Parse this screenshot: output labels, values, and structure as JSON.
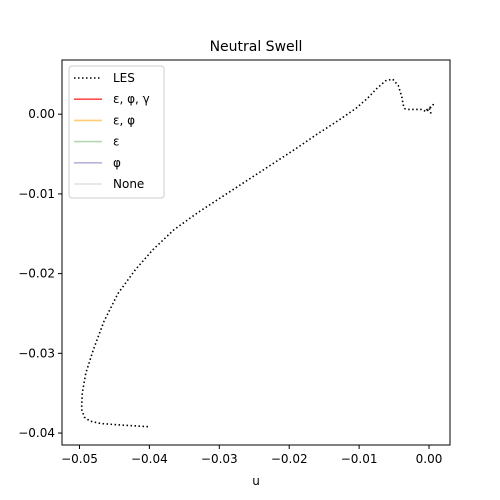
{
  "chart_data": {
    "type": "line",
    "title": "Neutral Swell",
    "xlabel": "u",
    "ylabel": "",
    "xlim": [
      -0.0525,
      0.003
    ],
    "ylim": [
      -0.0415,
      0.0068
    ],
    "xticks": [
      -0.05,
      -0.04,
      -0.03,
      -0.02,
      -0.01,
      0.0
    ],
    "xtick_labels": [
      "−0.05",
      "−0.04",
      "−0.03",
      "−0.02",
      "−0.01",
      "0.00"
    ],
    "yticks": [
      0.0,
      -0.01,
      -0.02,
      -0.03,
      -0.04
    ],
    "ytick_labels": [
      "0.00",
      "−0.01",
      "−0.02",
      "−0.03",
      "−0.04"
    ],
    "grid": false,
    "legend_placement": "top-left",
    "legend": [
      {
        "label": "LES",
        "color": "#000000",
        "style": "dotted"
      },
      {
        "label": "ε, φ, γ",
        "color": "#ff4d4d",
        "style": "solid"
      },
      {
        "label": "ε, φ",
        "color": "#ffcc73",
        "style": "solid"
      },
      {
        "label": "ε",
        "color": "#b5d9b5",
        "style": "solid"
      },
      {
        "label": "φ",
        "color": "#b8b5dc",
        "style": "solid"
      },
      {
        "label": "None",
        "color": "#e0e0e0",
        "style": "solid"
      }
    ],
    "series": [
      {
        "name": "LES",
        "x": [
          -0.0402,
          -0.044,
          -0.047,
          -0.0485,
          -0.0493,
          -0.0497,
          -0.0496,
          -0.0491,
          -0.048,
          -0.0465,
          -0.0445,
          -0.042,
          -0.0395,
          -0.0365,
          -0.033,
          -0.0295,
          -0.026,
          -0.0225,
          -0.019,
          -0.016,
          -0.013,
          -0.0105,
          -0.0088,
          -0.0075,
          -0.0062,
          -0.0052,
          -0.0044,
          -0.0039,
          -0.0037,
          -0.0035,
          -0.003,
          -0.002,
          -0.001,
          -0.0004,
          0.0002,
          0.0006,
          -0.0005,
          0.0,
          0.0004
        ],
        "y": [
          -0.0392,
          -0.039,
          -0.0388,
          -0.0385,
          -0.038,
          -0.037,
          -0.035,
          -0.0325,
          -0.0295,
          -0.026,
          -0.0225,
          -0.0195,
          -0.017,
          -0.0145,
          -0.0123,
          -0.0103,
          -0.0083,
          -0.0063,
          -0.0043,
          -0.0025,
          -0.0008,
          0.0007,
          0.002,
          0.0032,
          0.0042,
          0.0044,
          0.0036,
          0.0022,
          0.0012,
          0.0007,
          0.0006,
          0.0006,
          0.0006,
          0.0003,
          0.0008,
          0.0012,
          0.0004,
          0.0008,
          -0.0002
        ]
      }
    ]
  }
}
